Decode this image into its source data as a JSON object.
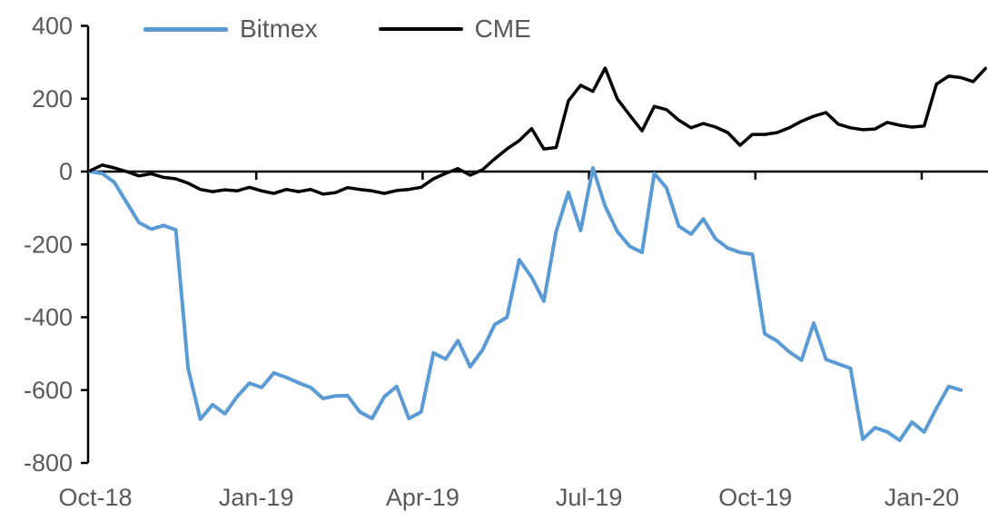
{
  "chart_data": {
    "type": "line",
    "title": "",
    "legend_position": "top",
    "grid": false,
    "ylim": [
      -800,
      400
    ],
    "y_ticks": [
      400,
      200,
      0,
      -200,
      -400,
      -600,
      -800
    ],
    "x_tick_labels": [
      "Oct-18",
      "Jan-19",
      "Apr-19",
      "Jul-19",
      "Oct-19",
      "Jan-20"
    ],
    "axis_label_color": "#595959",
    "axis_line_color": "#000000",
    "series": [
      {
        "name": "Bitmex",
        "color": "#5B9BD5",
        "values": [
          0,
          -5,
          -30,
          -85,
          -140,
          -158,
          -148,
          -160,
          -540,
          -680,
          -640,
          -665,
          -618,
          -581,
          -593,
          -553,
          -565,
          -580,
          -593,
          -623,
          -616,
          -615,
          -660,
          -678,
          -618,
          -590,
          -678,
          -660,
          -498,
          -515,
          -464,
          -536,
          -490,
          -420,
          -400,
          -242,
          -290,
          -356,
          -165,
          -57,
          -162,
          10,
          -95,
          -165,
          -205,
          -222,
          -5,
          -45,
          -150,
          -172,
          -130,
          -185,
          -210,
          -222,
          -227,
          -445,
          -465,
          -495,
          -518,
          -416,
          -516,
          -528,
          -540,
          -735,
          -703,
          -715,
          -738,
          -688,
          -715,
          -650,
          -590,
          -600
        ]
      },
      {
        "name": "CME",
        "color": "#000000",
        "values": [
          2,
          18,
          10,
          0,
          -12,
          -6,
          -16,
          -20,
          -32,
          -49,
          -55,
          -50,
          -53,
          -43,
          -53,
          -60,
          -49,
          -55,
          -49,
          -62,
          -58,
          -44,
          -49,
          -53,
          -60,
          -52,
          -49,
          -43,
          -20,
          -5,
          8,
          -10,
          5,
          35,
          62,
          85,
          118,
          62,
          66,
          194,
          237,
          220,
          284,
          199,
          155,
          112,
          179,
          170,
          141,
          120,
          132,
          122,
          107,
          72,
          102,
          102,
          107,
          120,
          138,
          152,
          162,
          130,
          120,
          115,
          117,
          135,
          127,
          122,
          125,
          240,
          262,
          258,
          247,
          283
        ]
      }
    ]
  }
}
